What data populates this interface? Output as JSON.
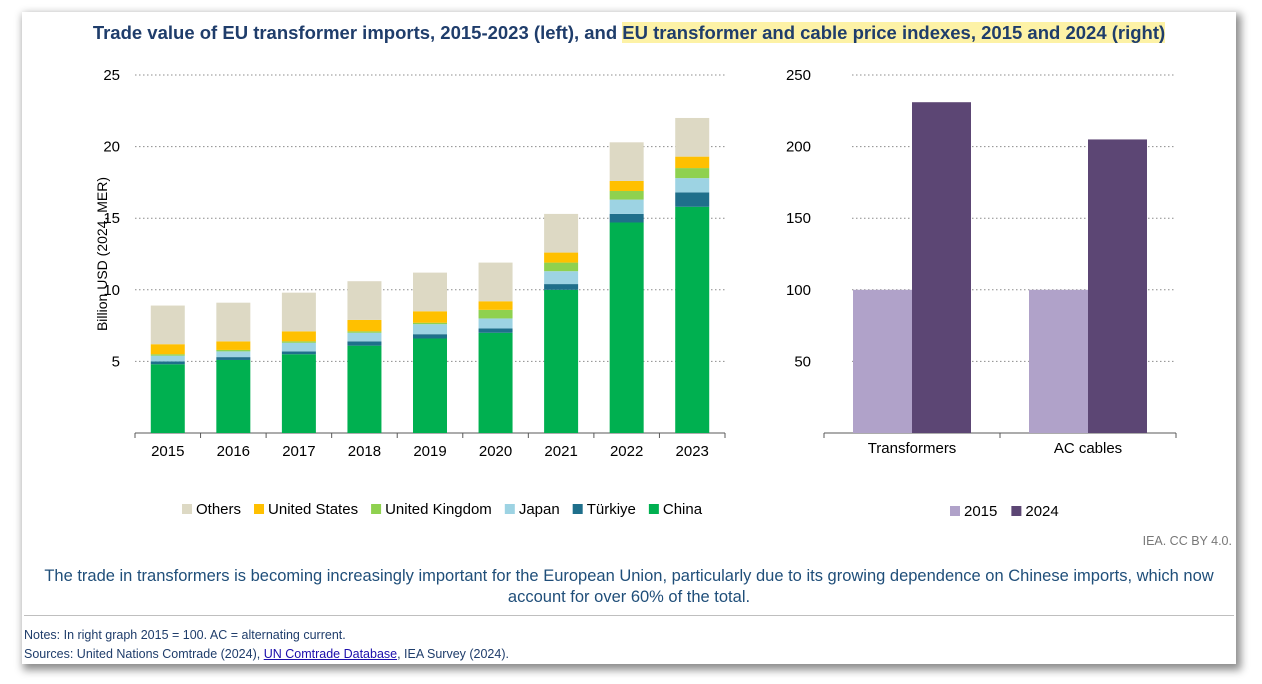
{
  "title": {
    "part1": "Trade value of EU transformer imports, 2015-2023 (left), and ",
    "part2": "EU transformer and cable price indexes, 2015 and 2024 (right)"
  },
  "credit": "IEA. CC BY 4.0.",
  "summary": "The trade in transformers is becoming increasingly important for the European Union, particularly due to its growing dependence on Chinese imports, which now account for over 60% of the total.",
  "notes": {
    "line1": "Notes: In right graph 2015 = 100. AC = alternating current.",
    "sources_prefix": "Sources: United Nations Comtrade (2024), ",
    "sources_link": "UN Comtrade Database",
    "sources_suffix": ", IEA Survey (2024)."
  },
  "colors": {
    "China": "#00b050",
    "Türkiye": "#1f6f8b",
    "Japan": "#9dd3e3",
    "United Kingdom": "#8fd14f",
    "United States": "#ffc000",
    "Others": "#ddd9c4",
    "2015": "#b0a2c9",
    "2024": "#5c4674",
    "text": "#1f3d6b"
  },
  "chart_data": [
    {
      "type": "bar",
      "stacked": true,
      "title": "Trade value of EU transformer imports, 2015-2023",
      "ylabel": "Billion USD (2024, MER)",
      "ylim": [
        0,
        25
      ],
      "yticks": [
        5,
        10,
        15,
        20,
        25
      ],
      "grid": true,
      "legend_position": "bottom",
      "categories": [
        "2015",
        "2016",
        "2017",
        "2018",
        "2019",
        "2020",
        "2021",
        "2022",
        "2023"
      ],
      "series": [
        {
          "name": "China",
          "values": [
            4.8,
            5.1,
            5.5,
            6.1,
            6.6,
            7.0,
            10.0,
            14.7,
            15.8
          ]
        },
        {
          "name": "Türkiye",
          "values": [
            0.2,
            0.2,
            0.2,
            0.3,
            0.3,
            0.3,
            0.4,
            0.6,
            1.0
          ]
        },
        {
          "name": "Japan",
          "values": [
            0.4,
            0.4,
            0.6,
            0.6,
            0.7,
            0.7,
            0.9,
            1.0,
            1.0
          ]
        },
        {
          "name": "United Kingdom",
          "values": [
            0.1,
            0.1,
            0.1,
            0.1,
            0.1,
            0.6,
            0.6,
            0.6,
            0.7
          ]
        },
        {
          "name": "United States",
          "values": [
            0.7,
            0.6,
            0.7,
            0.8,
            0.8,
            0.6,
            0.7,
            0.7,
            0.8
          ]
        },
        {
          "name": "Others",
          "values": [
            2.7,
            2.7,
            2.7,
            2.7,
            2.7,
            2.7,
            2.7,
            2.7,
            2.7
          ]
        }
      ],
      "legend_order": [
        "Others",
        "United States",
        "United Kingdom",
        "Japan",
        "Türkiye",
        "China"
      ]
    },
    {
      "type": "bar",
      "title": "EU transformer and cable price indexes, 2015 and 2024",
      "ylim": [
        0,
        250
      ],
      "yticks": [
        50,
        100,
        150,
        200,
        250
      ],
      "grid": true,
      "legend_position": "bottom",
      "categories": [
        "Transformers",
        "AC cables"
      ],
      "series": [
        {
          "name": "2015",
          "values": [
            100,
            100
          ]
        },
        {
          "name": "2024",
          "values": [
            231,
            205
          ]
        }
      ]
    }
  ]
}
